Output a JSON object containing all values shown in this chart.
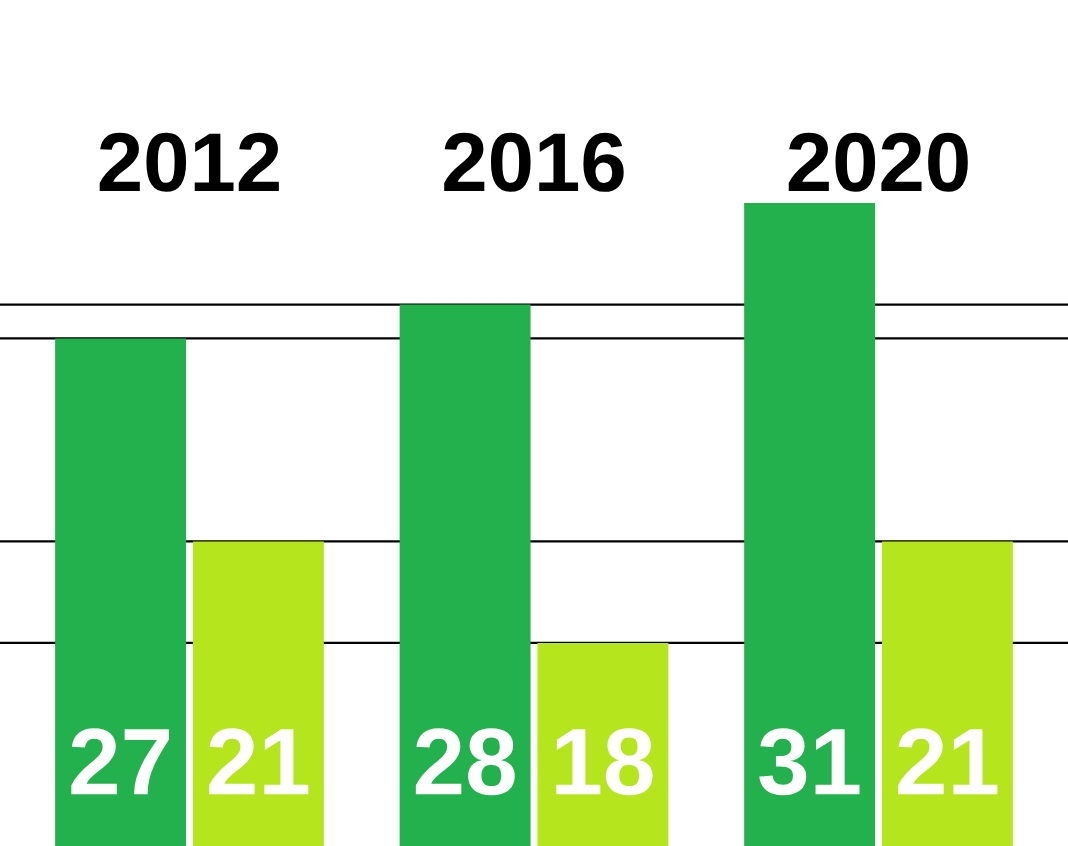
{
  "chart_data": {
    "type": "bar",
    "categories": [
      "2012",
      "2016",
      "2020"
    ],
    "series": [
      {
        "color": "#22b14c",
        "values": [
          27,
          28,
          31
        ]
      },
      {
        "color": "#b5e61d",
        "values": [
          21,
          18,
          21
        ]
      }
    ],
    "ylim": [
      12,
      37
    ],
    "tick_labels": "x",
    "data_labels": true,
    "grid": false,
    "legend": false,
    "ref_lines": [
      {
        "axis": "y",
        "value": 28,
        "color": "#000000"
      },
      {
        "axis": "y",
        "value": 27,
        "color": "#000000"
      },
      {
        "axis": "y",
        "value": 21,
        "color": "#000000"
      },
      {
        "axis": "y",
        "value": 18,
        "color": "#000000"
      }
    ]
  }
}
